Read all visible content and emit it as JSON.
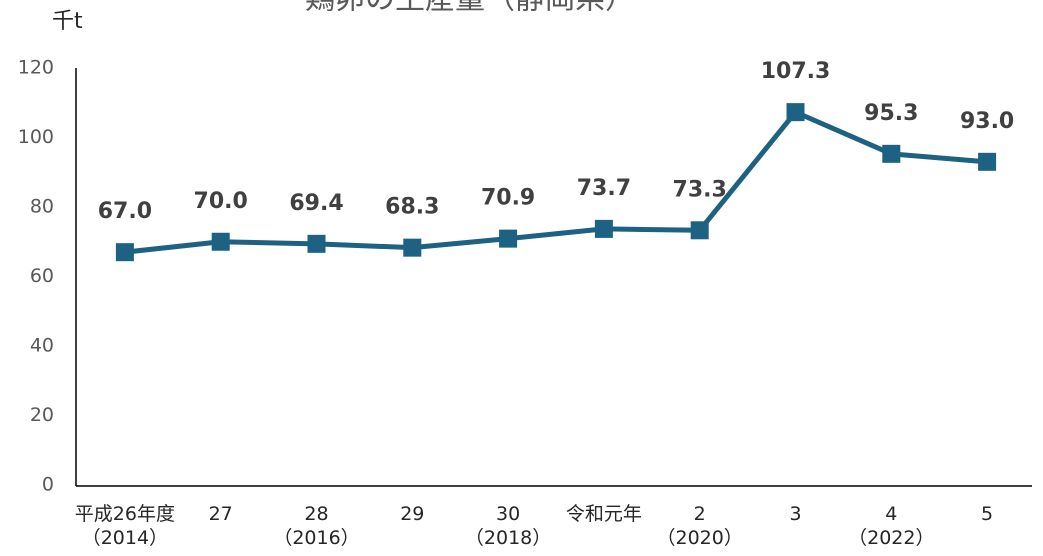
{
  "chart_data": {
    "type": "line",
    "title": "鶏卵の生産量（静岡県）",
    "y_label": "千t",
    "categories": [
      "平成26年度\n（2014）",
      "27",
      "28\n（2016）",
      "29",
      "30\n（2018）",
      "令和元年",
      "2\n（2020）",
      "3",
      "4\n（2022）",
      "5"
    ],
    "series": [
      {
        "name": "生産量",
        "color": "#1d6282",
        "values": [
          67.0,
          70.0,
          69.4,
          68.3,
          70.9,
          73.7,
          73.3,
          107.3,
          95.3,
          93.0
        ],
        "value_labels": [
          "67.0",
          "70.0",
          "69.4",
          "68.3",
          "70.9",
          "73.7",
          "73.3",
          "107.3",
          "95.3",
          "93.0"
        ]
      }
    ],
    "ylim": [
      0,
      120
    ],
    "yticks": [
      0,
      20,
      40,
      60,
      80,
      100,
      120
    ],
    "grid": false
  }
}
